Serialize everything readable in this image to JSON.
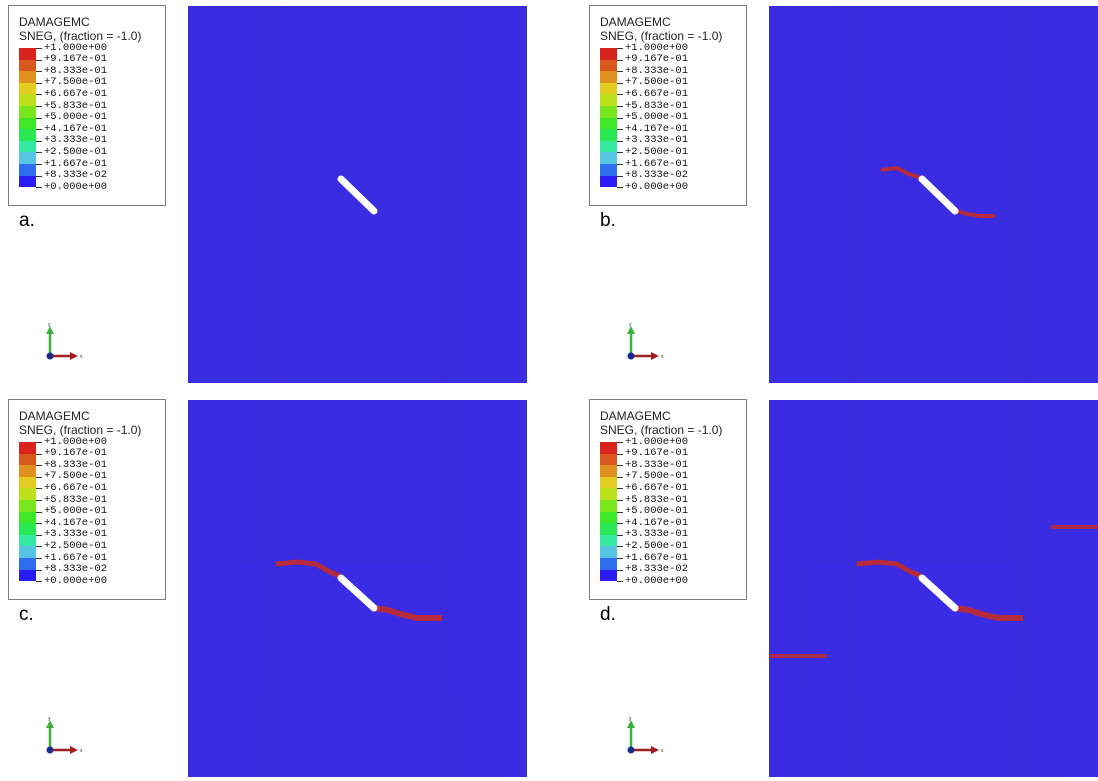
{
  "legend": {
    "title": "DAMAGEMC",
    "subtitle": "SNEG, (fraction = -1.0)",
    "values": [
      "+1.000e+00",
      "+9.167e-01",
      "+8.333e-01",
      "+7.500e-01",
      "+6.667e-01",
      "+5.833e-01",
      "+5.000e-01",
      "+4.167e-01",
      "+3.333e-01",
      "+2.500e-01",
      "+1.667e-01",
      "+8.333e-02",
      "+0.000e+00"
    ],
    "colors": [
      "#d8221c",
      "#d8581d",
      "#e0901f",
      "#e3cd22",
      "#bce11c",
      "#7ae71e",
      "#3fe826",
      "#28e854",
      "#35e8a0",
      "#56c5e2",
      "#2e6df0",
      "#2a1cf5"
    ]
  },
  "panels": [
    {
      "label": "a.",
      "damage": "none"
    },
    {
      "label": "b.",
      "damage": "short"
    },
    {
      "label": "c.",
      "damage": "extended"
    },
    {
      "label": "d.",
      "damage": "extended-plus-edge"
    }
  ],
  "triad": {
    "x_label": "x",
    "y_label": "y"
  },
  "colors": {
    "field": "#3a2ce0",
    "crack": "#ffffff",
    "damage": "#b52a3d"
  }
}
